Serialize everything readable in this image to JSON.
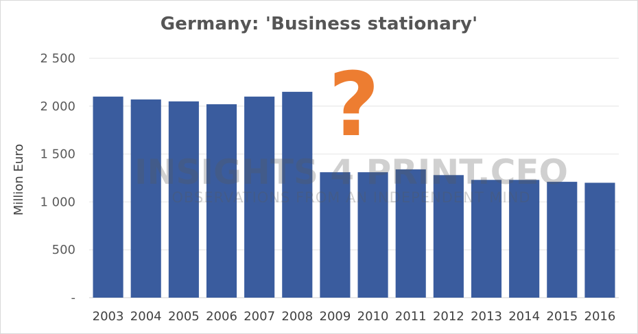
{
  "chart_data": {
    "type": "bar",
    "title": "Germany: 'Business stationary'",
    "ylabel": "Million Euro",
    "xlabel": "",
    "categories": [
      "2003",
      "2004",
      "2005",
      "2006",
      "2007",
      "2008",
      "2009",
      "2010",
      "2011",
      "2012",
      "2013",
      "2014",
      "2015",
      "2016"
    ],
    "values": [
      2100,
      2070,
      2050,
      2020,
      2100,
      2150,
      1310,
      1310,
      1340,
      1280,
      1230,
      1230,
      1210,
      1200
    ],
    "ylim": [
      0,
      2500
    ],
    "y_ticks": [
      {
        "value": 0,
        "label": "-"
      },
      {
        "value": 500,
        "label": "500"
      },
      {
        "value": 1000,
        "label": "1 000"
      },
      {
        "value": 1500,
        "label": "1 500"
      },
      {
        "value": 2000,
        "label": "2 000"
      },
      {
        "value": 2500,
        "label": "2 500"
      }
    ],
    "grid": true,
    "legend": "none",
    "bar_color": "#3a5c9e"
  },
  "annotation": {
    "text": "?",
    "color": "#ed7d31"
  },
  "watermark": {
    "line1": "INSIGHTS 4 PRINT.CEO",
    "line2": "OBSERVATIONS FROM AN INDEPENDENT MIND"
  }
}
